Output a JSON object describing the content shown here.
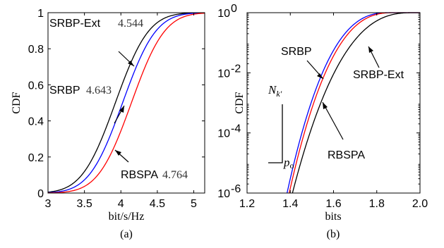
{
  "chart_data": [
    {
      "type": "line",
      "panel": "(a)",
      "xlabel": "bit/s/Hz",
      "ylabel": "CDF",
      "xlim": [
        3,
        5.15
      ],
      "ylim": [
        0,
        1
      ],
      "xticks": [
        3,
        3.5,
        4,
        4.5,
        5
      ],
      "xtick_labels": [
        "3",
        "3.5",
        "4",
        "4.5",
        "5"
      ],
      "yticks": [
        0,
        0.2,
        0.4,
        0.6,
        0.8,
        1
      ],
      "ytick_labels": [
        "0",
        "0.2",
        "0.4",
        "0.6",
        "0.8",
        "1"
      ],
      "grid": false,
      "series": [
        {
          "name": "SRBP-Ext",
          "color": "#000000",
          "mean": 4.544,
          "sd": 0.36
        },
        {
          "name": "SRBP",
          "color": "#0000ff",
          "mean": 4.643,
          "sd": 0.36
        },
        {
          "name": "RBSPA",
          "color": "#ff0000",
          "mean": 4.764,
          "sd": 0.36
        }
      ],
      "annotations": [
        {
          "label": "SRBP-Ext",
          "value": "4.544"
        },
        {
          "label": "SRBP",
          "value": "4.643"
        },
        {
          "label": "RBSPA",
          "value": "4.764"
        }
      ]
    },
    {
      "type": "line",
      "panel": "(b)",
      "xlabel": "bits",
      "ylabel": "CDF",
      "yscale": "log",
      "xlim": [
        1.2,
        2.0
      ],
      "ylim": [
        1e-06,
        1
      ],
      "xticks": [
        1.2,
        1.4,
        1.6,
        1.8,
        2.0
      ],
      "xtick_labels": [
        "1.2",
        "1.4",
        "1.6",
        "1.8",
        "2.0"
      ],
      "ytick_exponents": [
        0,
        -2,
        -4,
        -6
      ],
      "ytick_base": "10",
      "grid": false,
      "series": [
        {
          "name": "SRBP",
          "color": "#0000ff"
        },
        {
          "name": "RBSPA",
          "color": "#ff0000"
        },
        {
          "name": "SRBP-Ext",
          "color": "#000000"
        }
      ],
      "annotations": [
        {
          "label": "SRBP"
        },
        {
          "label": "RBSPA"
        },
        {
          "label": "SRBP-Ext"
        }
      ],
      "inset_labels": {
        "n_main": "N",
        "n_sub": "k′",
        "p_main": "p",
        "p_sub": "o"
      }
    }
  ]
}
